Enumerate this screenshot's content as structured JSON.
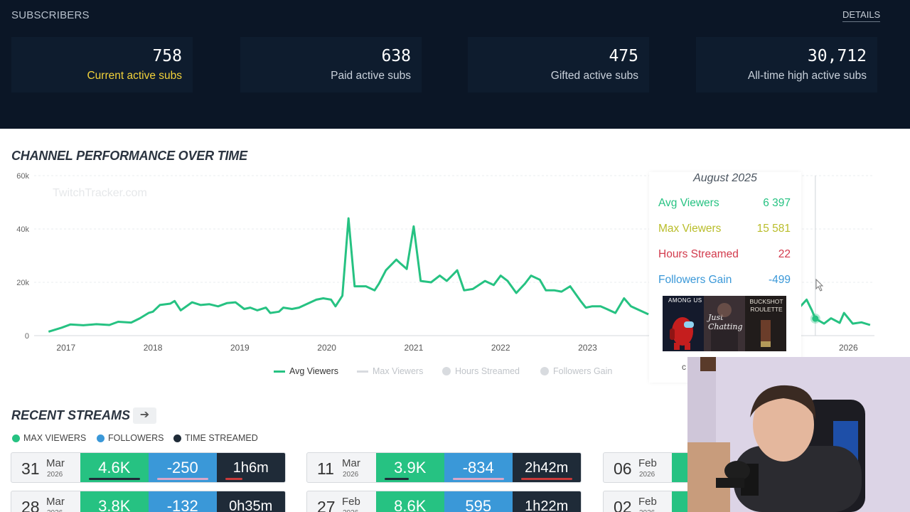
{
  "subscribers": {
    "title": "SUBSCRIBERS",
    "details_label": "DETAILS",
    "stats": [
      {
        "value": "758",
        "label": "Current active subs"
      },
      {
        "value": "638",
        "label": "Paid active subs"
      },
      {
        "value": "475",
        "label": "Gifted active subs"
      },
      {
        "value": "30,712",
        "label": "All-time high active subs"
      }
    ]
  },
  "performance": {
    "title": "CHANNEL PERFORMANCE OVER TIME",
    "watermark": "TwitchTracker.com",
    "legend": [
      {
        "label": "Avg Viewers",
        "active": true
      },
      {
        "label": "Max Viewers",
        "active": false
      },
      {
        "label": "Hours Streamed",
        "active": false
      },
      {
        "label": "Followers Gain",
        "active": false
      }
    ]
  },
  "chart_data": {
    "type": "line",
    "ylim": [
      0,
      60000
    ],
    "y_ticks": [
      "0",
      "20k",
      "40k",
      "60k"
    ],
    "x_ticks": [
      "2017",
      "2018",
      "2019",
      "2020",
      "2021",
      "2022",
      "2023",
      "2026"
    ],
    "grid": true,
    "series": [
      {
        "name": "Avg Viewers",
        "color": "#26c282",
        "points": [
          [
            2016.8,
            1500
          ],
          [
            2016.95,
            3000
          ],
          [
            2017.05,
            4200
          ],
          [
            2017.2,
            3900
          ],
          [
            2017.35,
            4300
          ],
          [
            2017.5,
            4000
          ],
          [
            2017.6,
            5200
          ],
          [
            2017.75,
            4900
          ],
          [
            2017.85,
            6500
          ],
          [
            2017.95,
            8500
          ],
          [
            2018.0,
            9000
          ],
          [
            2018.08,
            11500
          ],
          [
            2018.2,
            12000
          ],
          [
            2018.25,
            13000
          ],
          [
            2018.32,
            9500
          ],
          [
            2018.45,
            12500
          ],
          [
            2018.55,
            11500
          ],
          [
            2018.65,
            11800
          ],
          [
            2018.75,
            11000
          ],
          [
            2018.85,
            12200
          ],
          [
            2018.95,
            12500
          ],
          [
            2019.05,
            10000
          ],
          [
            2019.12,
            10500
          ],
          [
            2019.2,
            9500
          ],
          [
            2019.3,
            10500
          ],
          [
            2019.35,
            8500
          ],
          [
            2019.45,
            9000
          ],
          [
            2019.5,
            10500
          ],
          [
            2019.6,
            10000
          ],
          [
            2019.68,
            10500
          ],
          [
            2019.78,
            12000
          ],
          [
            2019.88,
            13500
          ],
          [
            2019.96,
            14000
          ],
          [
            2020.05,
            13500
          ],
          [
            2020.1,
            11000
          ],
          [
            2020.18,
            15000
          ],
          [
            2020.25,
            44000
          ],
          [
            2020.32,
            18500
          ],
          [
            2020.45,
            18500
          ],
          [
            2020.55,
            17000
          ],
          [
            2020.6,
            19500
          ],
          [
            2020.68,
            24500
          ],
          [
            2020.8,
            28500
          ],
          [
            2020.85,
            27000
          ],
          [
            2020.92,
            25000
          ],
          [
            2021.0,
            41000
          ],
          [
            2021.08,
            20500
          ],
          [
            2021.2,
            20000
          ],
          [
            2021.3,
            22500
          ],
          [
            2021.38,
            20500
          ],
          [
            2021.5,
            24500
          ],
          [
            2021.58,
            17000
          ],
          [
            2021.68,
            17500
          ],
          [
            2021.82,
            20500
          ],
          [
            2021.92,
            19000
          ],
          [
            2022.0,
            22500
          ],
          [
            2022.08,
            20500
          ],
          [
            2022.18,
            16000
          ],
          [
            2022.28,
            19500
          ],
          [
            2022.35,
            22500
          ],
          [
            2022.45,
            21000
          ],
          [
            2022.52,
            17000
          ],
          [
            2022.62,
            17000
          ],
          [
            2022.7,
            16500
          ],
          [
            2022.8,
            18500
          ],
          [
            2022.92,
            13000
          ],
          [
            2022.98,
            10500
          ],
          [
            2023.05,
            11000
          ],
          [
            2023.15,
            11000
          ],
          [
            2023.22,
            10000
          ],
          [
            2023.32,
            8500
          ],
          [
            2023.42,
            14000
          ],
          [
            2023.5,
            11000
          ],
          [
            2023.6,
            9500
          ],
          [
            2023.7,
            8000
          ]
        ]
      },
      {
        "name": "Avg Viewers (after tooltip)",
        "color": "#26c282",
        "points": [
          [
            2025.45,
            11000
          ],
          [
            2025.52,
            13500
          ],
          [
            2025.58,
            9500
          ],
          [
            2025.62,
            6400
          ],
          [
            2025.72,
            4500
          ],
          [
            2025.8,
            6500
          ],
          [
            2025.9,
            4800
          ],
          [
            2025.95,
            8500
          ],
          [
            2026.05,
            4500
          ],
          [
            2026.15,
            5000
          ],
          [
            2026.25,
            4000
          ]
        ]
      }
    ],
    "hover_point": {
      "x": 2025.62,
      "y": 6397
    }
  },
  "tooltip": {
    "title": "August 2025",
    "rows": [
      {
        "label": "Avg Viewers",
        "value": "6 397",
        "color": "#26c282"
      },
      {
        "label": "Max Viewers",
        "value": "15 581",
        "color": "#b9bd2a"
      },
      {
        "label": "Hours Streamed",
        "value": "22",
        "color": "#d23a4c"
      },
      {
        "label": "Followers Gain",
        "value": "-499",
        "color": "#3a98d8"
      }
    ],
    "thumbnails": [
      "AMONG US",
      "Just Chatting",
      "BUCKSHOT ROULETTE"
    ],
    "trailing_text": "c"
  },
  "recent": {
    "title": "RECENT STREAMS",
    "legend": [
      {
        "label": "MAX VIEWERS",
        "color": "#26c282"
      },
      {
        "label": "FOLLOWERS",
        "color": "#3a98d8"
      },
      {
        "label": "TIME STREAMED",
        "color": "#1f2b38"
      }
    ],
    "streams": [
      {
        "day": "31",
        "month": "Mar",
        "year": "2026",
        "max_viewers": "4.6K",
        "followers": "-250",
        "time": "1h6m",
        "mv_fraction": 0.45,
        "fl_fraction": 0.95,
        "ts_fraction": 0.25
      },
      {
        "day": "11",
        "month": "Mar",
        "year": "2026",
        "max_viewers": "3.9K",
        "followers": "-834",
        "time": "2h42m",
        "mv_fraction": 0.35,
        "fl_fraction": 0.95,
        "ts_fraction": 0.95
      },
      {
        "day": "06",
        "month": "Feb",
        "year": "2026",
        "max_viewers": "",
        "followers": "",
        "time": "",
        "mv_fraction": 0,
        "fl_fraction": 0,
        "ts_fraction": 0
      },
      {
        "day": "28",
        "month": "Mar",
        "year": "2026",
        "max_viewers": "3.8K",
        "followers": "-132",
        "time": "0h35m",
        "mv_fraction": 0,
        "fl_fraction": 0,
        "ts_fraction": 0
      },
      {
        "day": "27",
        "month": "Feb",
        "year": "2026",
        "max_viewers": "8.6K",
        "followers": "595",
        "time": "1h22m",
        "mv_fraction": 0,
        "fl_fraction": 0,
        "ts_fraction": 0
      },
      {
        "day": "02",
        "month": "Feb",
        "year": "2026",
        "max_viewers": "",
        "followers": "",
        "time": "",
        "mv_fraction": 0,
        "fl_fraction": 0,
        "ts_fraction": 0
      }
    ]
  }
}
